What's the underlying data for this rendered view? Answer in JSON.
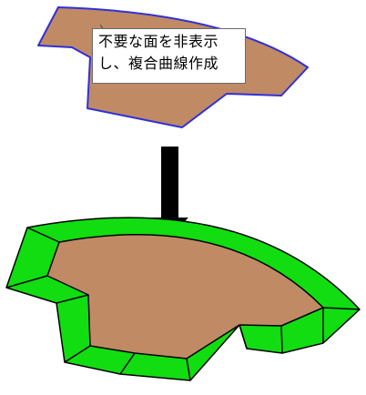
{
  "callout": {
    "line1": "不要な面を非表示",
    "line2": "し、複合曲線作成"
  },
  "colors": {
    "face_fill": "#c08a65",
    "face_outline_top": "#3030d8",
    "rim_fill": "#11dd11",
    "edge_stroke": "#000000",
    "arrow_fill": "#000000",
    "arrow_outline": "#ffffff"
  }
}
